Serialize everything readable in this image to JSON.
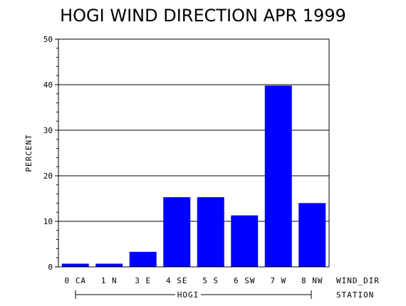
{
  "chart_data": {
    "type": "bar",
    "title": "HOGI WIND DIRECTION APR 1999",
    "ylabel": "PERCENT",
    "xlabel": "WIND_DIR",
    "group_label": "HOGI",
    "group_axis_label": "STATION",
    "categories": [
      "0 CA",
      "1 N",
      "3 E",
      "4 SE",
      "5 S",
      "6 SW",
      "7 W",
      "8 NW"
    ],
    "values": [
      0.7,
      0.7,
      3.3,
      15.3,
      15.3,
      11.3,
      39.8,
      14.0
    ],
    "ylim": [
      0,
      50
    ],
    "yticks": [
      "0",
      "10",
      "20",
      "30",
      "40",
      "50"
    ],
    "grid": true,
    "bar_color": "#0000ff"
  }
}
